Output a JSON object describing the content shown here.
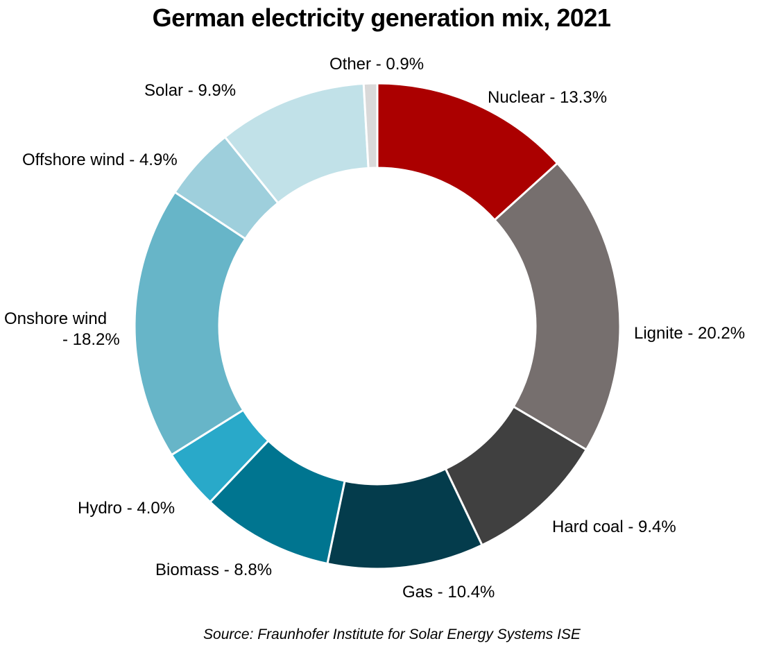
{
  "chart_data": {
    "type": "pie",
    "title": "German electricity generation mix, 2021",
    "source": "Source: Fraunhofer Institute for Solar Energy Systems ISE",
    "unit": "%",
    "slices": [
      {
        "name": "Nuclear",
        "value": 13.3,
        "label": [
          "Nuclear  - 13.3%"
        ],
        "color": "#AB0000"
      },
      {
        "name": "Lignite",
        "value": 20.2,
        "label": [
          "Lignite - 20.2%"
        ],
        "color": "#766F6E"
      },
      {
        "name": "Hard coal",
        "value": 9.4,
        "label": [
          "Hard coal  - 9.4%"
        ],
        "color": "#404040"
      },
      {
        "name": "Gas",
        "value": 10.4,
        "label": [
          "Gas - 10.4%"
        ],
        "color": "#043C4C"
      },
      {
        "name": "Biomass",
        "value": 8.8,
        "label": [
          "Biomass  - 8.8%"
        ],
        "color": "#007590"
      },
      {
        "name": "Hydro",
        "value": 4.0,
        "label": [
          "Hydro - 4.0%"
        ],
        "color": "#29A9C9"
      },
      {
        "name": "Onshore wind",
        "value": 18.2,
        "label": [
          "Onshore wind",
          "- 18.2%"
        ],
        "color": "#67B5C8"
      },
      {
        "name": "Offshore wind",
        "value": 4.9,
        "label": [
          "Offshore wind - 4.9%"
        ],
        "color": "#9ECFDC"
      },
      {
        "name": "Solar",
        "value": 9.9,
        "label": [
          "Solar  - 9.9%"
        ],
        "color": "#C1E1E8"
      },
      {
        "name": "Other",
        "value": 0.9,
        "label": [
          "Other  - 0.9%"
        ],
        "color": "#D9D9D9"
      }
    ]
  }
}
